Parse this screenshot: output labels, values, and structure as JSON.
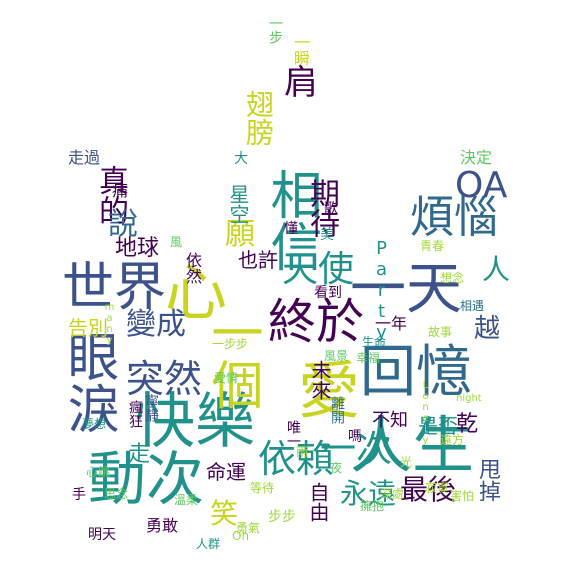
{
  "palette": {
    "dark_purple": "#440154",
    "indigo": "#3b528b",
    "teal": "#21918c",
    "green": "#5ec962",
    "yellow": "#fde725",
    "blue": "#2c728e",
    "navy": "#31688e",
    "light_green": "#a0da39"
  },
  "words": [
    {
      "text": "世界",
      "color": "#3b528b",
      "dir": "h"
    },
    {
      "text": "眼淚",
      "color": "#3b528b",
      "dir": "v"
    },
    {
      "text": "快樂",
      "color": "#21918c",
      "dir": "h"
    },
    {
      "text": "動次",
      "color": "#21918c",
      "dir": "h"
    },
    {
      "text": "一個",
      "color": "#c8d41f",
      "dir": "v"
    },
    {
      "text": "心",
      "color": "#c8d41f",
      "dir": "h"
    },
    {
      "text": "相信",
      "color": "#21918c",
      "dir": "v"
    },
    {
      "text": "回憶",
      "color": "#31688e",
      "dir": "h"
    },
    {
      "text": "愛",
      "color": "#c8d41f",
      "dir": "h"
    },
    {
      "text": "人生",
      "color": "#21918c",
      "dir": "h"
    },
    {
      "text": "一天",
      "color": "#3b528b",
      "dir": "h"
    },
    {
      "text": "終於",
      "color": "#440154",
      "dir": "h"
    },
    {
      "text": "煩惱",
      "color": "#31688e",
      "dir": "h"
    },
    {
      "text": "OA",
      "color": "#3b528b",
      "dir": "h"
    },
    {
      "text": "天使",
      "color": "#21918c",
      "dir": "h"
    },
    {
      "text": "突然",
      "color": "#3b528b",
      "dir": "h"
    },
    {
      "text": "依賴",
      "color": "#21918c",
      "dir": "h"
    },
    {
      "text": "一次",
      "color": "#21918c",
      "dir": "h"
    },
    {
      "text": "永遠",
      "color": "#21918c",
      "dir": "h"
    },
    {
      "text": "最後",
      "color": "#440154",
      "dir": "h"
    },
    {
      "text": "翅膀",
      "color": "#c8d41f",
      "dir": "v"
    },
    {
      "text": "肩",
      "color": "#440154",
      "dir": "h"
    },
    {
      "text": "真的",
      "color": "#440154",
      "dir": "v"
    },
    {
      "text": "說",
      "color": "#31688e",
      "dir": "h"
    },
    {
      "text": "期待",
      "color": "#440154",
      "dir": "v"
    },
    {
      "text": "願",
      "color": "#c8d41f",
      "dir": "h"
    },
    {
      "text": "也許",
      "color": "#440154",
      "dir": "h"
    },
    {
      "text": "Party",
      "color": "#21918c",
      "dir": "v"
    },
    {
      "text": "人",
      "color": "#21918c",
      "dir": "h"
    },
    {
      "text": "變成",
      "color": "#3b528b",
      "dir": "h"
    },
    {
      "text": "地球",
      "color": "#440154",
      "dir": "h"
    },
    {
      "text": "告別",
      "color": "#c8d41f",
      "dir": "h"
    },
    {
      "text": "笑",
      "color": "#c8d41f",
      "dir": "h"
    },
    {
      "text": "未來",
      "color": "#440154",
      "dir": "v"
    },
    {
      "text": "命運",
      "color": "#440154",
      "dir": "h"
    },
    {
      "text": "不知",
      "color": "#440154",
      "dir": "h"
    },
    {
      "text": "是否",
      "color": "#21918c",
      "dir": "h"
    },
    {
      "text": "越",
      "color": "#3b528b",
      "dir": "h"
    },
    {
      "text": "乾",
      "color": "#440154",
      "dir": "h"
    },
    {
      "text": "甩掉",
      "color": "#3b528b",
      "dir": "v"
    },
    {
      "text": "自由",
      "color": "#440154",
      "dir": "v"
    },
    {
      "text": "走",
      "color": "#21918c",
      "dir": "h"
    },
    {
      "text": "手",
      "color": "#440154",
      "dir": "h"
    },
    {
      "text": "一年",
      "color": "#440154",
      "dir": "h"
    },
    {
      "text": "星空",
      "color": "#21918c",
      "dir": "v"
    },
    {
      "text": "依然",
      "color": "#440154",
      "dir": "v"
    },
    {
      "text": "決定",
      "color": "#5ec962",
      "dir": "h"
    },
    {
      "text": "走過",
      "color": "#3b528b",
      "dir": "h"
    },
    {
      "text": "一步",
      "color": "#5ec962",
      "dir": "v"
    },
    {
      "text": "一瞬",
      "color": "#c8d41f",
      "dir": "v"
    },
    {
      "text": "嗎",
      "color": "#440154",
      "dir": "h"
    },
    {
      "text": "勇敢",
      "color": "#440154",
      "dir": "h"
    },
    {
      "text": "明天",
      "color": "#440154",
      "dir": "h"
    },
    {
      "text": "唯一",
      "color": "#440154",
      "dir": "v"
    },
    {
      "text": "步步",
      "color": "#a0da39",
      "dir": "h"
    },
    {
      "text": "生命",
      "color": "#21918c",
      "dir": "h"
    },
    {
      "text": "愛情",
      "color": "#5ec962",
      "dir": "h"
    },
    {
      "text": "寂寞",
      "color": "#a0da39",
      "dir": "h"
    },
    {
      "text": "痛",
      "color": "#440154",
      "dir": "h"
    },
    {
      "text": "大",
      "color": "#21918c",
      "dir": "h"
    },
    {
      "text": "人群",
      "color": "#21918c",
      "dir": "h"
    },
    {
      "text": "一步步",
      "color": "#a0da39",
      "dir": "h"
    },
    {
      "text": "深處",
      "color": "#a0da39",
      "dir": "h"
    },
    {
      "text": "遠方",
      "color": "#a0da39",
      "dir": "h"
    },
    {
      "text": "風景",
      "color": "#5ec962",
      "dir": "h"
    },
    {
      "text": "幸福",
      "color": "#5ec962",
      "dir": "h"
    },
    {
      "text": "故事",
      "color": "#a0da39",
      "dir": "h"
    },
    {
      "text": "相遇",
      "color": "#2c728e",
      "dir": "h"
    },
    {
      "text": "害怕",
      "color": "#a0da39",
      "dir": "h"
    },
    {
      "text": "心跳",
      "color": "#5ec962",
      "dir": "h"
    },
    {
      "text": "溫柔",
      "color": "#5ec962",
      "dir": "h"
    },
    {
      "text": "勇氣",
      "color": "#a0da39",
      "dir": "h"
    },
    {
      "text": "夢想",
      "color": "#21918c",
      "dir": "h"
    },
    {
      "text": "青春",
      "color": "#a0da39",
      "dir": "h"
    },
    {
      "text": "擁抱",
      "color": "#5ec962",
      "dir": "h"
    },
    {
      "text": "雨",
      "color": "#a0da39",
      "dir": "h"
    },
    {
      "text": "夜",
      "color": "#5ec962",
      "dir": "h"
    },
    {
      "text": "光",
      "color": "#a0da39",
      "dir": "h"
    },
    {
      "text": "風",
      "color": "#5ec962",
      "dir": "h"
    },
    {
      "text": "想念",
      "color": "#a0da39",
      "dir": "h"
    },
    {
      "text": "思念",
      "color": "#5ec962",
      "dir": "h"
    },
    {
      "text": "等待",
      "color": "#a0da39",
      "dir": "h"
    },
    {
      "text": "瘋狂",
      "color": "#440154",
      "dir": "v"
    },
    {
      "text": "寧靜",
      "color": "#3b528b",
      "dir": "v"
    },
    {
      "text": "看到",
      "color": "#440154",
      "dir": "h"
    },
    {
      "text": "離開",
      "color": "#2c728e",
      "dir": "v"
    },
    {
      "text": "懂",
      "color": "#440154",
      "dir": "h"
    },
    {
      "text": "歌",
      "color": "#440154",
      "dir": "h"
    },
    {
      "text": "美",
      "color": "#21918c",
      "dir": "h"
    },
    {
      "text": "Oh",
      "color": "#a0da39",
      "dir": "h"
    },
    {
      "text": "Lonely",
      "color": "#a0da39",
      "dir": "v"
    },
    {
      "text": "night",
      "color": "#a0da39",
      "dir": "h"
    },
    {
      "text": "many",
      "color": "#a0da39",
      "dir": "v"
    }
  ]
}
